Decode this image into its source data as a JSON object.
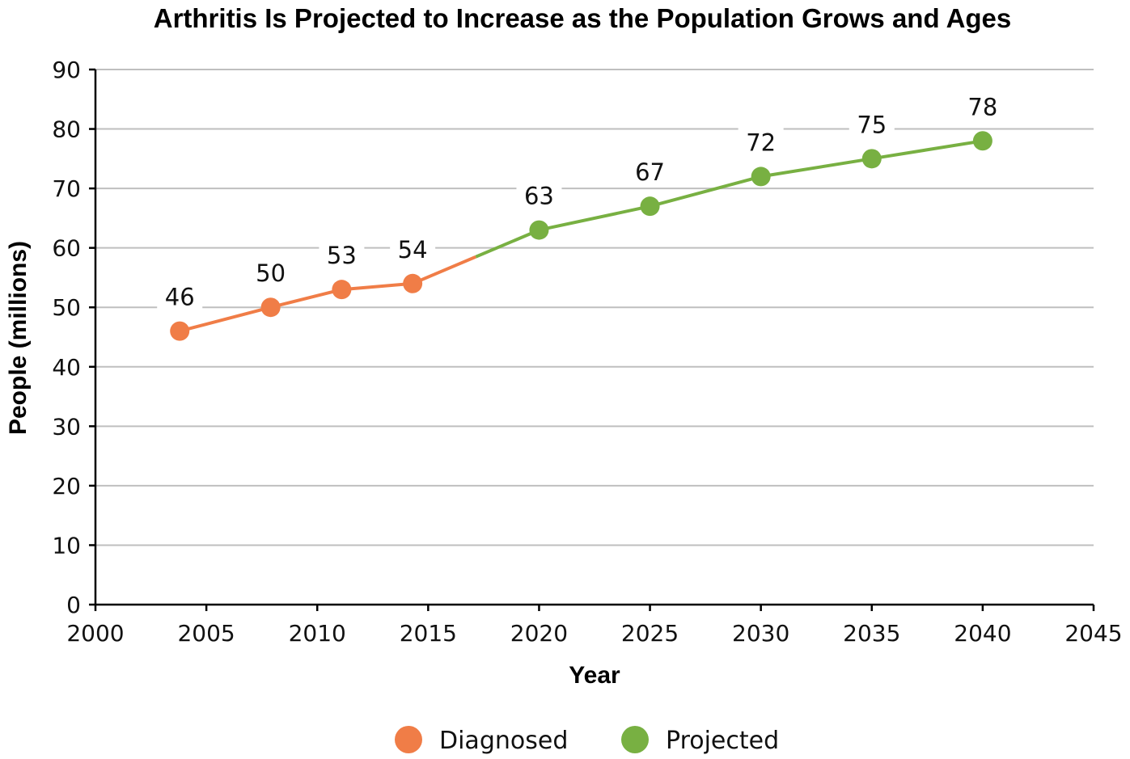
{
  "chart_data": {
    "type": "line",
    "title": "Arthritis Is Projected to Increase as the Population Grows and Ages",
    "xlabel": "Year",
    "ylabel": "People (millions)",
    "xlim": [
      2000,
      2045
    ],
    "ylim": [
      0,
      90
    ],
    "xticks": [
      2000,
      2005,
      2010,
      2015,
      2020,
      2025,
      2030,
      2035,
      2040,
      2045
    ],
    "yticks": [
      0,
      10,
      20,
      30,
      40,
      50,
      60,
      70,
      80,
      90
    ],
    "grid": true,
    "legend_position": "bottom",
    "series": [
      {
        "name": "Diagnosed",
        "color": "#f07d47",
        "points": [
          {
            "x": 2003.8,
            "y": 46
          },
          {
            "x": 2007.9,
            "y": 50
          },
          {
            "x": 2011.1,
            "y": 53
          },
          {
            "x": 2014.3,
            "y": 54
          }
        ]
      },
      {
        "name": "Projected",
        "color": "#78b042",
        "points": [
          {
            "x": 2020,
            "y": 63
          },
          {
            "x": 2025,
            "y": 67
          },
          {
            "x": 2030,
            "y": 72
          },
          {
            "x": 2035,
            "y": 75
          },
          {
            "x": 2040,
            "y": 78
          }
        ]
      }
    ]
  }
}
